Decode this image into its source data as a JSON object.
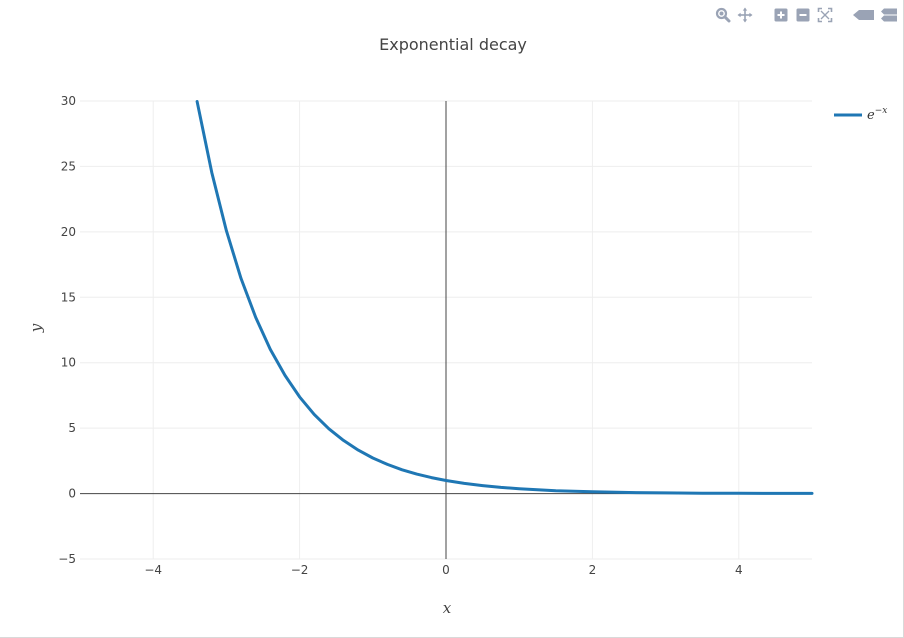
{
  "colors": {
    "line": "#1f77b4",
    "grid": "#eeeeee",
    "zeroline": "#444444",
    "modebar": "#9aa3b5"
  },
  "modebar": {
    "buttons": [
      {
        "name": "zoom-icon"
      },
      {
        "name": "pan-icon"
      },
      {
        "name": "zoom-in-icon"
      },
      {
        "name": "zoom-out-icon"
      },
      {
        "name": "autoscale-icon"
      },
      {
        "name": "hover-closest-icon"
      },
      {
        "name": "hover-compare-icon"
      }
    ]
  },
  "chart_data": {
    "type": "line",
    "title": "Exponential decay",
    "xlabel": "x",
    "ylabel": "y",
    "xlim": [
      -5,
      5
    ],
    "ylim": [
      -5,
      30
    ],
    "x_ticks": [
      -4,
      -2,
      0,
      2,
      4
    ],
    "x_tick_labels": [
      "−4",
      "−2",
      "0",
      "2",
      "4"
    ],
    "y_ticks": [
      -5,
      0,
      5,
      10,
      15,
      20,
      25,
      30
    ],
    "y_tick_labels": [
      "−5",
      "0",
      "5",
      "10",
      "15",
      "20",
      "25",
      "30"
    ],
    "grid": true,
    "legend_position": "top-right",
    "series": [
      {
        "name": "e^{-x}",
        "legend_base": "e",
        "legend_sup": "−x",
        "x": [
          -3.4,
          -3.2,
          -3.0,
          -2.8,
          -2.6,
          -2.4,
          -2.2,
          -2.0,
          -1.8,
          -1.6,
          -1.4,
          -1.2,
          -1.0,
          -0.8,
          -0.6,
          -0.4,
          -0.2,
          0.0,
          0.25,
          0.5,
          0.75,
          1.0,
          1.5,
          2.0,
          2.5,
          3.0,
          3.5,
          4.0,
          4.5,
          5.0
        ],
        "y": [
          29.96,
          24.53,
          20.09,
          16.44,
          13.46,
          11.02,
          9.03,
          7.39,
          6.05,
          4.95,
          4.06,
          3.32,
          2.72,
          2.23,
          1.82,
          1.49,
          1.22,
          1.0,
          0.78,
          0.61,
          0.47,
          0.37,
          0.22,
          0.14,
          0.08,
          0.05,
          0.03,
          0.02,
          0.01,
          0.01
        ]
      }
    ]
  }
}
